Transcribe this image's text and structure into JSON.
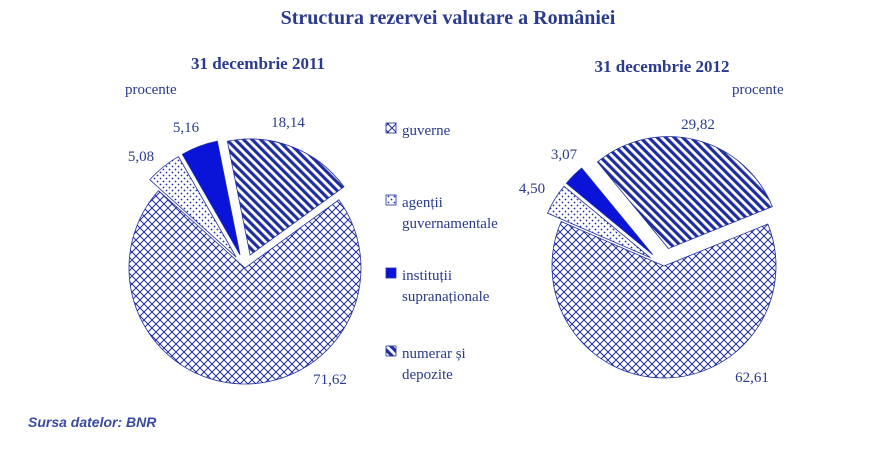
{
  "title": "Structura rezervei valutare a României",
  "source": "Sursa datelor: BNR",
  "colors": {
    "text": "#2a3a8c",
    "pattern": "#1f2e9e",
    "solid": "#0a14d8",
    "background": "#ffffff"
  },
  "legend": [
    {
      "label": [
        "guverne"
      ],
      "pattern": "crosshatch"
    },
    {
      "label": [
        "agenții",
        "guvernamentale"
      ],
      "pattern": "dots"
    },
    {
      "label": [
        "instituții",
        "supranaționale"
      ],
      "pattern": "solid"
    },
    {
      "label": [
        "numerar și",
        "depozite"
      ],
      "pattern": "stripes"
    }
  ],
  "chart_data": [
    {
      "type": "pie",
      "title": "31 decembrie 2011",
      "unit": "procente",
      "categories": [
        "guverne",
        "agenții guvernamentale",
        "instituții supranaționale",
        "numerar și depozite"
      ],
      "values": [
        71.62,
        5.08,
        5.16,
        18.14
      ],
      "labels": [
        "71,62",
        "5,08",
        "5,16",
        "18,14"
      ]
    },
    {
      "type": "pie",
      "title": "31 decembrie 2012",
      "unit": "procente",
      "categories": [
        "guverne",
        "agenții guvernamentale",
        "instituții supranaționale",
        "numerar și depozite"
      ],
      "values": [
        62.61,
        4.5,
        3.07,
        29.82
      ],
      "labels": [
        "62,61",
        "4,50",
        "3,07",
        "29,82"
      ]
    }
  ]
}
